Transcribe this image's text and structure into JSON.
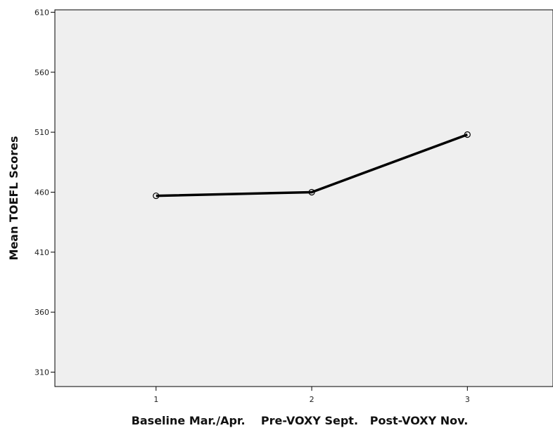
{
  "chart_data": {
    "type": "line",
    "x": [
      1,
      2,
      3
    ],
    "xlim": [
      0.35,
      3.55
    ],
    "ylim": [
      298,
      612
    ],
    "y_ticks": [
      310,
      360,
      410,
      460,
      510,
      560,
      610
    ],
    "x_ticks": [
      1,
      2,
      3
    ],
    "series": [
      {
        "values": [
          457,
          460,
          508
        ]
      }
    ],
    "xlabel": "Baseline Mar./Apr.    Pre-VOXY Sept.   Post-VOXY Nov.",
    "ylabel": "Mean TOEFL Scores",
    "grid": false,
    "plot_background": "#efefef",
    "line_color": "#000000"
  }
}
